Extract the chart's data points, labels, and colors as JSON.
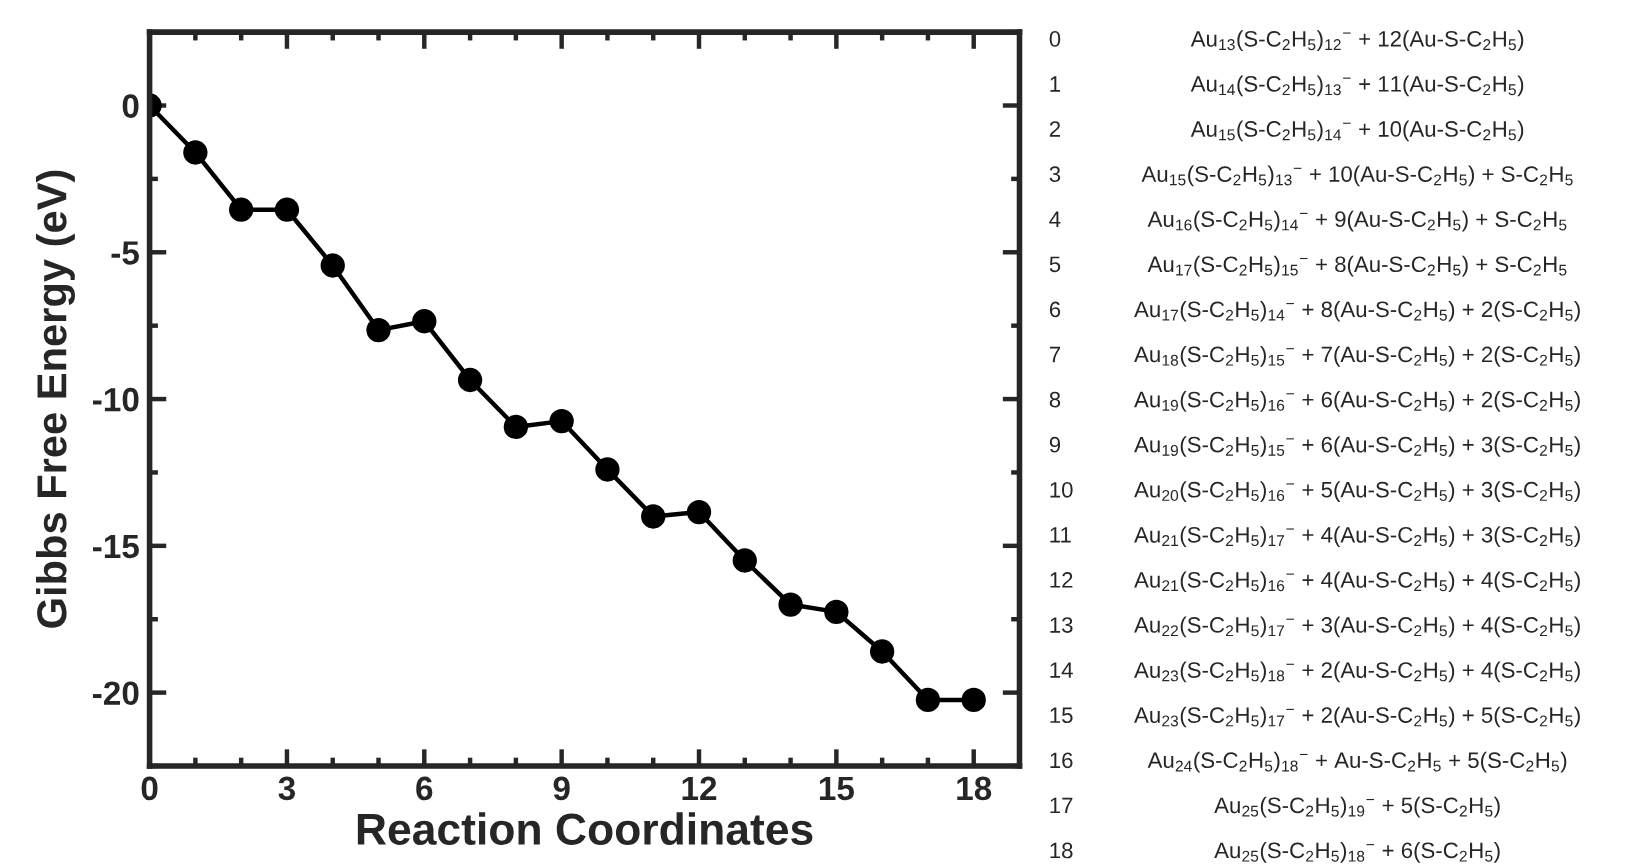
{
  "chart_data": {
    "type": "line",
    "xlabel": "Reaction Coordinates",
    "ylabel": "Gibbs Free Energy (eV)",
    "x": [
      0,
      1,
      2,
      3,
      4,
      5,
      6,
      7,
      8,
      9,
      10,
      11,
      12,
      13,
      14,
      15,
      16,
      17,
      18
    ],
    "series": [
      {
        "color": "#000000",
        "values": [
          0,
          -1.6,
          -3.55,
          -3.55,
          -5.45,
          -7.65,
          -7.35,
          -9.35,
          -10.95,
          -10.75,
          -12.4,
          -14.0,
          -13.85,
          -15.5,
          -17.0,
          -17.25,
          -18.6,
          -20.25,
          -20.25
        ]
      }
    ],
    "xlim": [
      0,
      19
    ],
    "xticks": [
      0,
      3,
      6,
      9,
      12,
      15,
      18
    ],
    "ylim": [
      -22.5,
      2.5
    ],
    "yticks": [
      {
        "value": 0,
        "label": "0"
      },
      {
        "value": -5,
        "label": "-5"
      },
      {
        "value": -10,
        "label": "-10"
      },
      {
        "value": -15,
        "label": "-15"
      },
      {
        "value": -20,
        "label": "-20"
      }
    ],
    "marker": "circle",
    "line_style": "solid",
    "grid": false,
    "legend": false,
    "annotations": [
      "0",
      "Au$_{13}$(S-C$_{2}$H$_{5}$)$_{12}$$^{−}$ + 12(Au-S-C$_{2}$H$_{5}$)",
      "1",
      "Au$_{14}$(S-C$_{2}$H$_{5}$)$_{13}$$^{−}$ + 11(Au-S-C$_{2}$H$_{5}$)",
      "2",
      "Au$_{15}$(S-C$_{2}$H$_{5}$)$_{14}$$^{−}$ + 10(Au-S-C$_{2}$H$_{5}$)",
      "3",
      "Au$_{15}$(S-C$_{2}$H$_{5}$)$_{13}$$^{−}$ + 10(Au-S-C$_{2}$H$_{5}$) + S-C$_{2}$H$_{5}$",
      "4",
      "Au$_{16}$(S-C$_{2}$H$_{5}$)$_{14}$$^{−}$ + 9(Au-S-C$_{2}$H$_{5}$) + S-C$_{2}$H$_{5}$",
      "5",
      "Au$_{17}$(S-C$_{2}$H$_{5}$)$_{15}$$^{−}$ + 8(Au-S-C$_{2}$H$_{5}$) + S-C$_{2}$H$_{5}$",
      "6",
      "Au$_{17}$(S-C$_{2}$H$_{5}$)$_{14}$$^{−}$ + 8(Au-S-C$_{2}$H$_{5}$) + 2(S-C$_{2}$H$_{5}$)",
      "7",
      "Au$_{18}$(S-C$_{2}$H$_{5}$)$_{15}$$^{−}$ + 7(Au-S-C$_{2}$H$_{5}$) + 2(S-C$_{2}$H$_{5}$)",
      "8",
      "Au$_{19}$(S-C$_{2}$H$_{5}$)$_{16}$$^{−}$ + 6(Au-S-C$_{2}$H$_{5}$) + 2(S-C$_{2}$H$_{5}$)",
      "9",
      "Au$_{19}$(S-C$_{2}$H$_{5}$)$_{15}$$^{−}$ + 6(Au-S-C$_{2}$H$_{5}$) + 3(S-C$_{2}$H$_{5}$)",
      "10",
      "Au$_{20}$(S-C$_{2}$H$_{5}$)$_{16}$$^{−}$ + 5(Au-S-C$_{2}$H$_{5}$) + 3(S-C$_{2}$H$_{5}$)",
      "11",
      "Au$_{21}$(S-C$_{2}$H$_{5}$)$_{17}$$^{−}$ + 4(Au-S-C$_{2}$H$_{5}$) + 3(S-C$_{2}$H$_{5}$)",
      "12",
      "Au$_{21}$(S-C$_{2}$H$_{5}$)$_{16}$$^{−}$ + 4(Au-S-C$_{2}$H$_{5}$) + 4(S-C$_{2}$H$_{5}$)",
      "13",
      "Au$_{22}$(S-C$_{2}$H$_{5}$)$_{17}$$^{−}$ + 3(Au-S-C$_{2}$H$_{5}$) + 4(S-C$_{2}$H$_{5}$)",
      "14",
      "Au$_{23}$(S-C$_{2}$H$_{5}$)$_{18}$$^{−}$ + 2(Au-S-C$_{2}$H$_{5}$) + 4(S-C$_{2}$H$_{5}$)",
      "15",
      "Au$_{23}$(S-C$_{2}$H$_{5}$)$_{17}$$^{−}$ + 2(Au-S-C$_{2}$H$_{5}$) + 5(S-C$_{2}$H$_{5}$)",
      "16",
      "Au$_{24}$(S-C$_{2}$H$_{5}$)$_{18}$$^{−}$ + Au-S-C$_{2}$H$_{5}$ + 5(S-C$_{2}$H$_{5}$)",
      "17",
      "Au$_{25}$(S-C$_{2}$H$_{5}$)$_{19}$$^{−}$ + 5(S-C$_{2}$H$_{5}$)",
      "18",
      "Au$_{25}$(S-C$_{2}$H$_{5}$)$_{18}$$^{−}$ + 6(S-C$_{2}$H$_{5}$)"
    ]
  }
}
